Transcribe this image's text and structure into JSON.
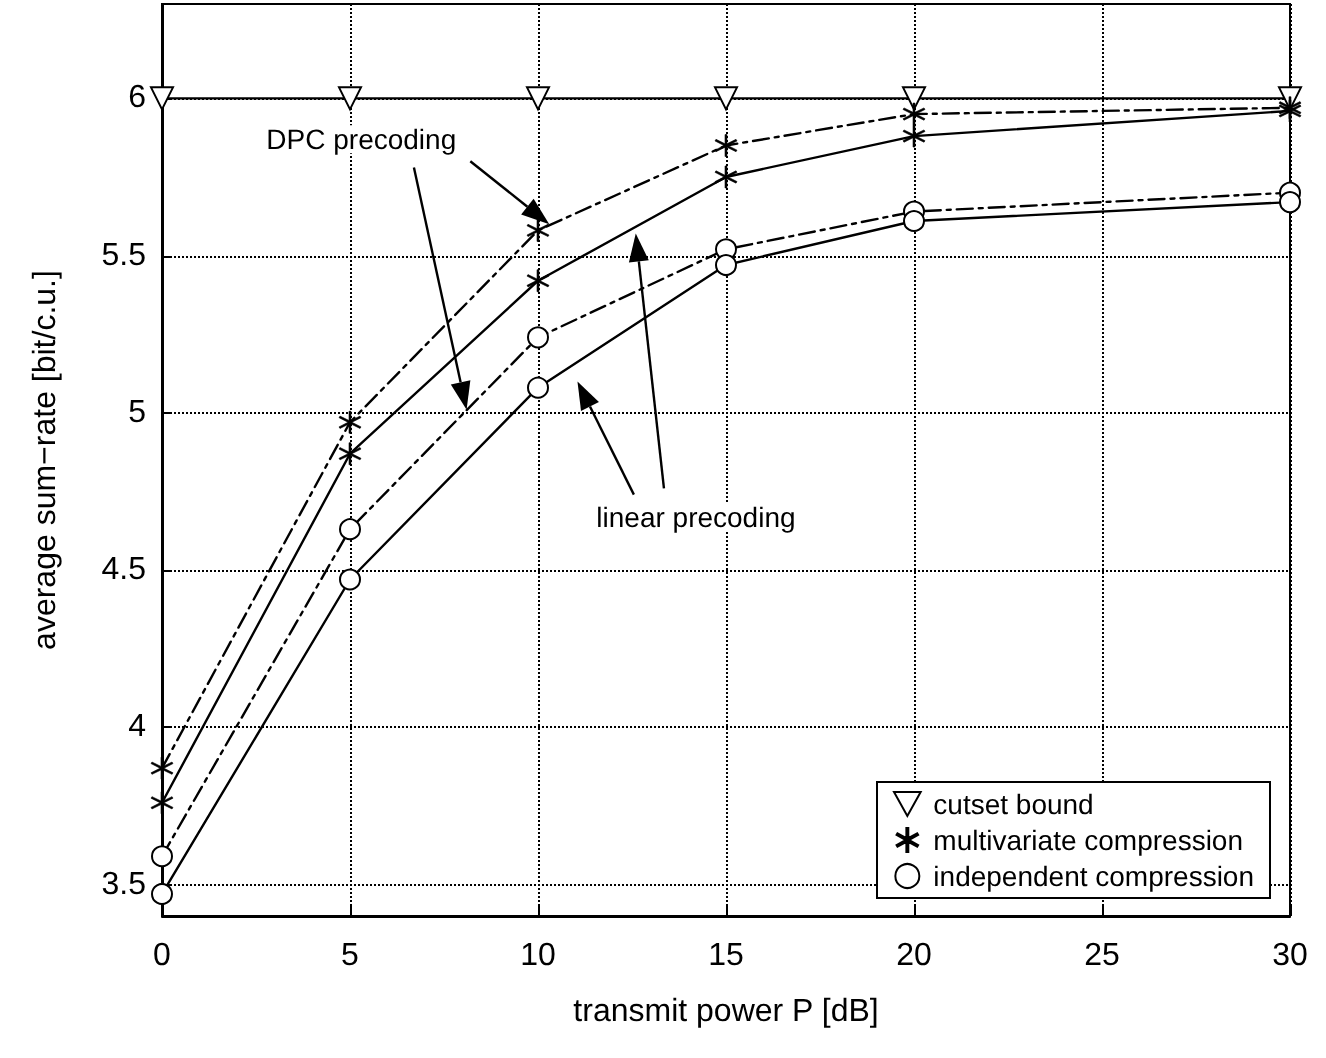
{
  "chart_data": {
    "type": "line",
    "xlabel": "transmit power P [dB]",
    "ylabel": "average sum−rate [bit/c.u.]",
    "x": [
      0,
      5,
      10,
      15,
      20,
      30
    ],
    "series": [
      {
        "name": "cutset bound",
        "color": "#000000",
        "values": [
          6,
          6,
          6,
          6,
          6,
          6
        ],
        "marker": "triangle",
        "line_style": "solid"
      },
      {
        "name": "multivariate compression",
        "color": "#000000",
        "values": [
          3.87,
          4.97,
          5.58,
          5.85,
          5.95,
          5.97
        ],
        "marker": "star",
        "line_style": "dashed"
      },
      {
        "color": "#000000",
        "values": [
          3.76,
          4.87,
          5.42,
          5.75,
          5.88,
          5.96
        ],
        "marker": "star",
        "line_style": "solid"
      },
      {
        "name": "independent compression",
        "color": "#000000",
        "values": [
          3.59,
          4.63,
          5.24,
          5.52,
          5.64,
          5.7
        ],
        "marker": "circle",
        "line_style": "dashed"
      },
      {
        "color": "#000000",
        "values": [
          3.47,
          4.47,
          5.08,
          5.47,
          5.61,
          5.67
        ],
        "marker": "circle",
        "line_style": "solid"
      }
    ],
    "xlim": [
      0,
      30
    ],
    "xticks": [
      0,
      5,
      10,
      15,
      20,
      25,
      30
    ],
    "ylim": [
      3.4,
      6.3
    ],
    "yticks": [
      3.5,
      4,
      4.5,
      5,
      5.5,
      6
    ],
    "grid": true,
    "legend": "bottom right",
    "annotations": [
      "DPC precoding",
      "linear precoding"
    ]
  }
}
